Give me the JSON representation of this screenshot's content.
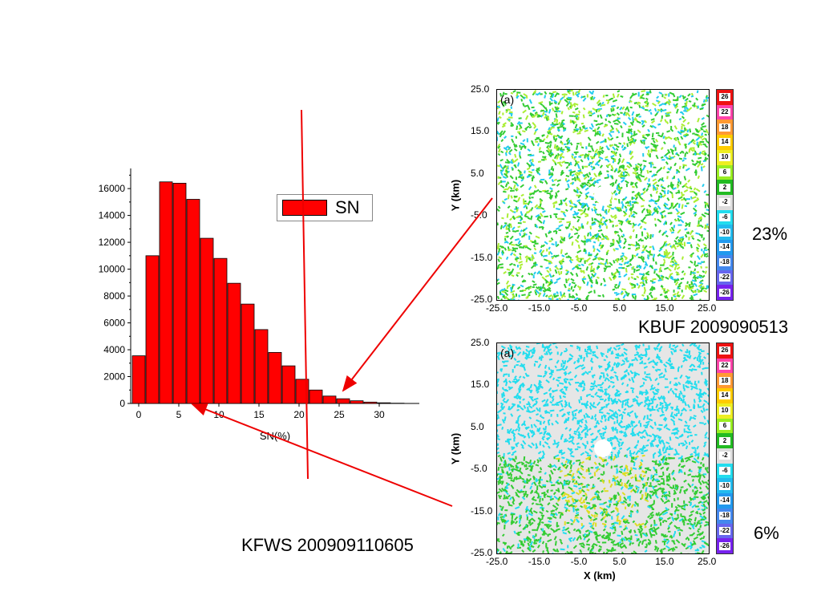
{
  "chart_data": [
    {
      "type": "bar",
      "x": [
        0,
        1.7,
        3.4,
        5.1,
        6.8,
        8.5,
        10.2,
        11.9,
        13.6,
        15.3,
        17.0,
        18.7,
        20.4,
        22.1,
        23.8,
        25.5,
        27.2,
        28.9,
        30.6,
        32.3
      ],
      "values": [
        3550,
        11000,
        16500,
        16400,
        15200,
        12300,
        10800,
        8950,
        7400,
        5500,
        3800,
        2800,
        1800,
        1000,
        550,
        350,
        200,
        100,
        50,
        20
      ],
      "color": "#ff0000",
      "bar_width": 1.6,
      "series": [
        {
          "name": "SN"
        }
      ],
      "xlabel": "SN(%)",
      "ylabel": "",
      "xlim": [
        -1,
        35
      ],
      "ylim": [
        0,
        17500
      ],
      "xticks": [
        0,
        5,
        10,
        15,
        20,
        25,
        30
      ],
      "yticks": [
        0,
        2000,
        4000,
        6000,
        8000,
        10000,
        12000,
        14000,
        16000
      ],
      "legend": "top-right",
      "grid": false
    }
  ],
  "annotations": {
    "kfws": "KFWS 200909110605",
    "kbuf": "KBUF 2009090513",
    "pct_top": "23%",
    "pct_bottom": "6%"
  },
  "maps": {
    "top": {
      "tag": "(a)",
      "ylabel": "Y (km)",
      "xticks": [
        "-25.0",
        "-15.0",
        "-5.0",
        "5.0",
        "15.0",
        "25.0"
      ],
      "yticks": [
        "25.0",
        "15.0",
        "5.0",
        "-5.0",
        "-15.0",
        "-25.0"
      ],
      "dominant_colors": [
        "#33cc33",
        "#aaee33",
        "#22ccee",
        "#ffffff"
      ]
    },
    "bottom": {
      "tag": "(a)",
      "ylabel": "Y (km)",
      "xlabel": "X (km)",
      "xticks": [
        "-25.0",
        "-15.0",
        "-5.0",
        "5.0",
        "15.0",
        "25.0"
      ],
      "yticks": [
        "25.0",
        "15.0",
        "5.0",
        "-5.0",
        "-15.0",
        "-25.0"
      ],
      "dominant_colors": [
        "#22ddee",
        "#33cc33",
        "#dddd22",
        "#ffffff"
      ]
    }
  },
  "color_scale": {
    "labels": [
      "26",
      "22",
      "18",
      "14",
      "10",
      "6",
      "2",
      "-2",
      "-6",
      "-10",
      "-14",
      "-18",
      "-22",
      "-26"
    ],
    "colors": [
      "#ee1111",
      "#ff44aa",
      "#ff9933",
      "#ffcc00",
      "#eeee22",
      "#99ee22",
      "#22bb22",
      "#dddddd",
      "#22ddee",
      "#22bbee",
      "#2299ee",
      "#4488ee",
      "#6666ee",
      "#7722ee"
    ]
  },
  "colors": {
    "bar": "#ff0000",
    "arrow": "#ee0000"
  }
}
